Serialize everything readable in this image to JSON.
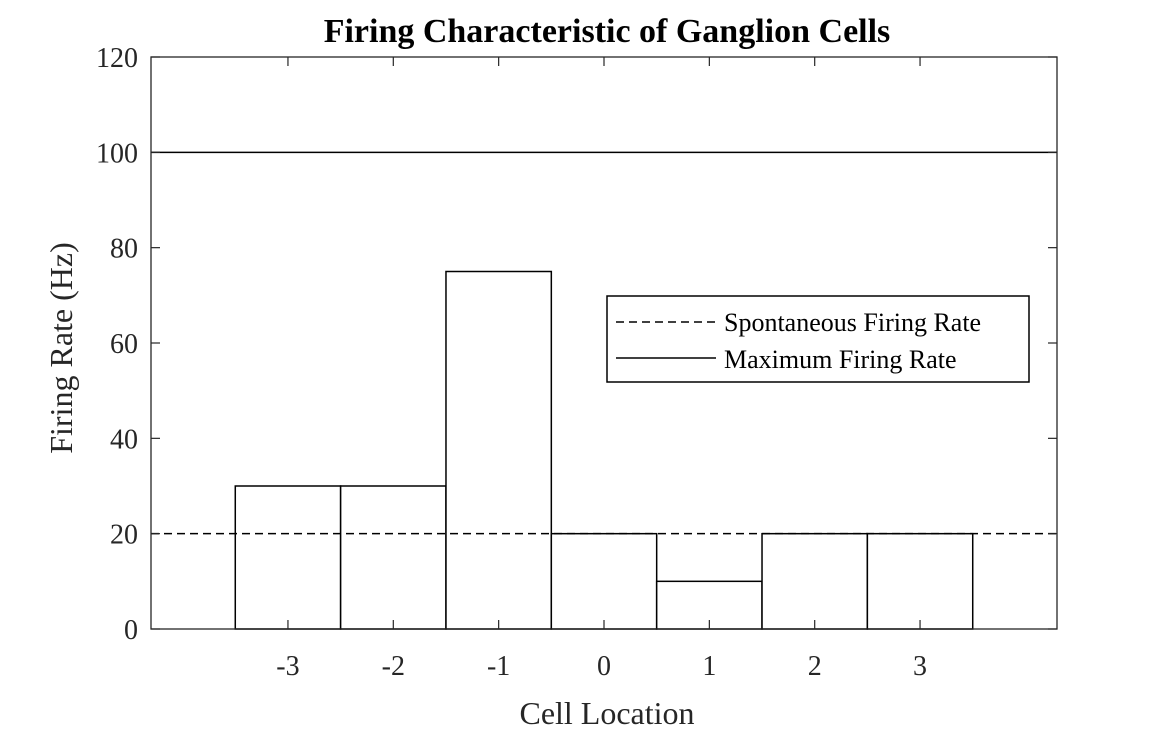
{
  "chart_data": {
    "type": "bar",
    "title": "Firing Characteristic of Ganglion Cells",
    "xlabel": "Cell Location",
    "ylabel": "Firing Rate (Hz)",
    "categories": [
      -3,
      -2,
      -1,
      0,
      1,
      2,
      3
    ],
    "values": [
      30,
      30,
      75,
      20,
      10,
      20,
      20
    ],
    "xlim": [
      -4.3,
      4.3
    ],
    "ylim": [
      0,
      120
    ],
    "yticks": [
      0,
      20,
      40,
      60,
      80,
      100,
      120
    ],
    "xticks": [
      -3,
      -2,
      -1,
      0,
      1,
      2,
      3
    ],
    "bar_fill": "#ffffff",
    "bar_edge": "#000000",
    "reference_lines": [
      {
        "name": "Spontaneous Firing Rate",
        "value": 20,
        "style": "dashed"
      },
      {
        "name": "Maximum Firing Rate",
        "value": 100,
        "style": "solid"
      }
    ],
    "legend": {
      "placement": "upper-right",
      "entries": [
        "Spontaneous Firing Rate",
        "Maximum Firing Rate"
      ]
    },
    "grid": false
  }
}
